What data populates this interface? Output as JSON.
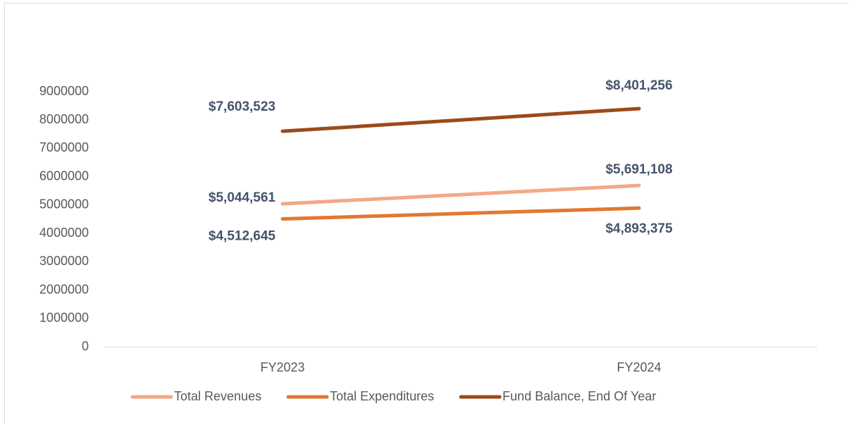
{
  "chart_data": {
    "type": "line",
    "categories": [
      "FY2023",
      "FY2024"
    ],
    "series": [
      {
        "name": "Total Revenues",
        "color": "#f4a886",
        "values": [
          5044561,
          5691108
        ],
        "value_labels": [
          "$5,044,561",
          "$5,691,108"
        ]
      },
      {
        "name": "Total Expenditures",
        "color": "#e2782f",
        "values": [
          4512645,
          4893375
        ],
        "value_labels": [
          "$4,512,645",
          "$4,893,375"
        ]
      },
      {
        "name": "Fund Balance, End Of Year",
        "color": "#9c4a1a",
        "values": [
          7603523,
          8401256
        ],
        "value_labels": [
          "$7,603,523",
          "$8,401,256"
        ]
      }
    ],
    "ylim": [
      0,
      9000000
    ],
    "yticks": [
      0,
      1000000,
      2000000,
      3000000,
      4000000,
      5000000,
      6000000,
      7000000,
      8000000,
      9000000
    ],
    "grid": false,
    "legend": "bottom"
  }
}
